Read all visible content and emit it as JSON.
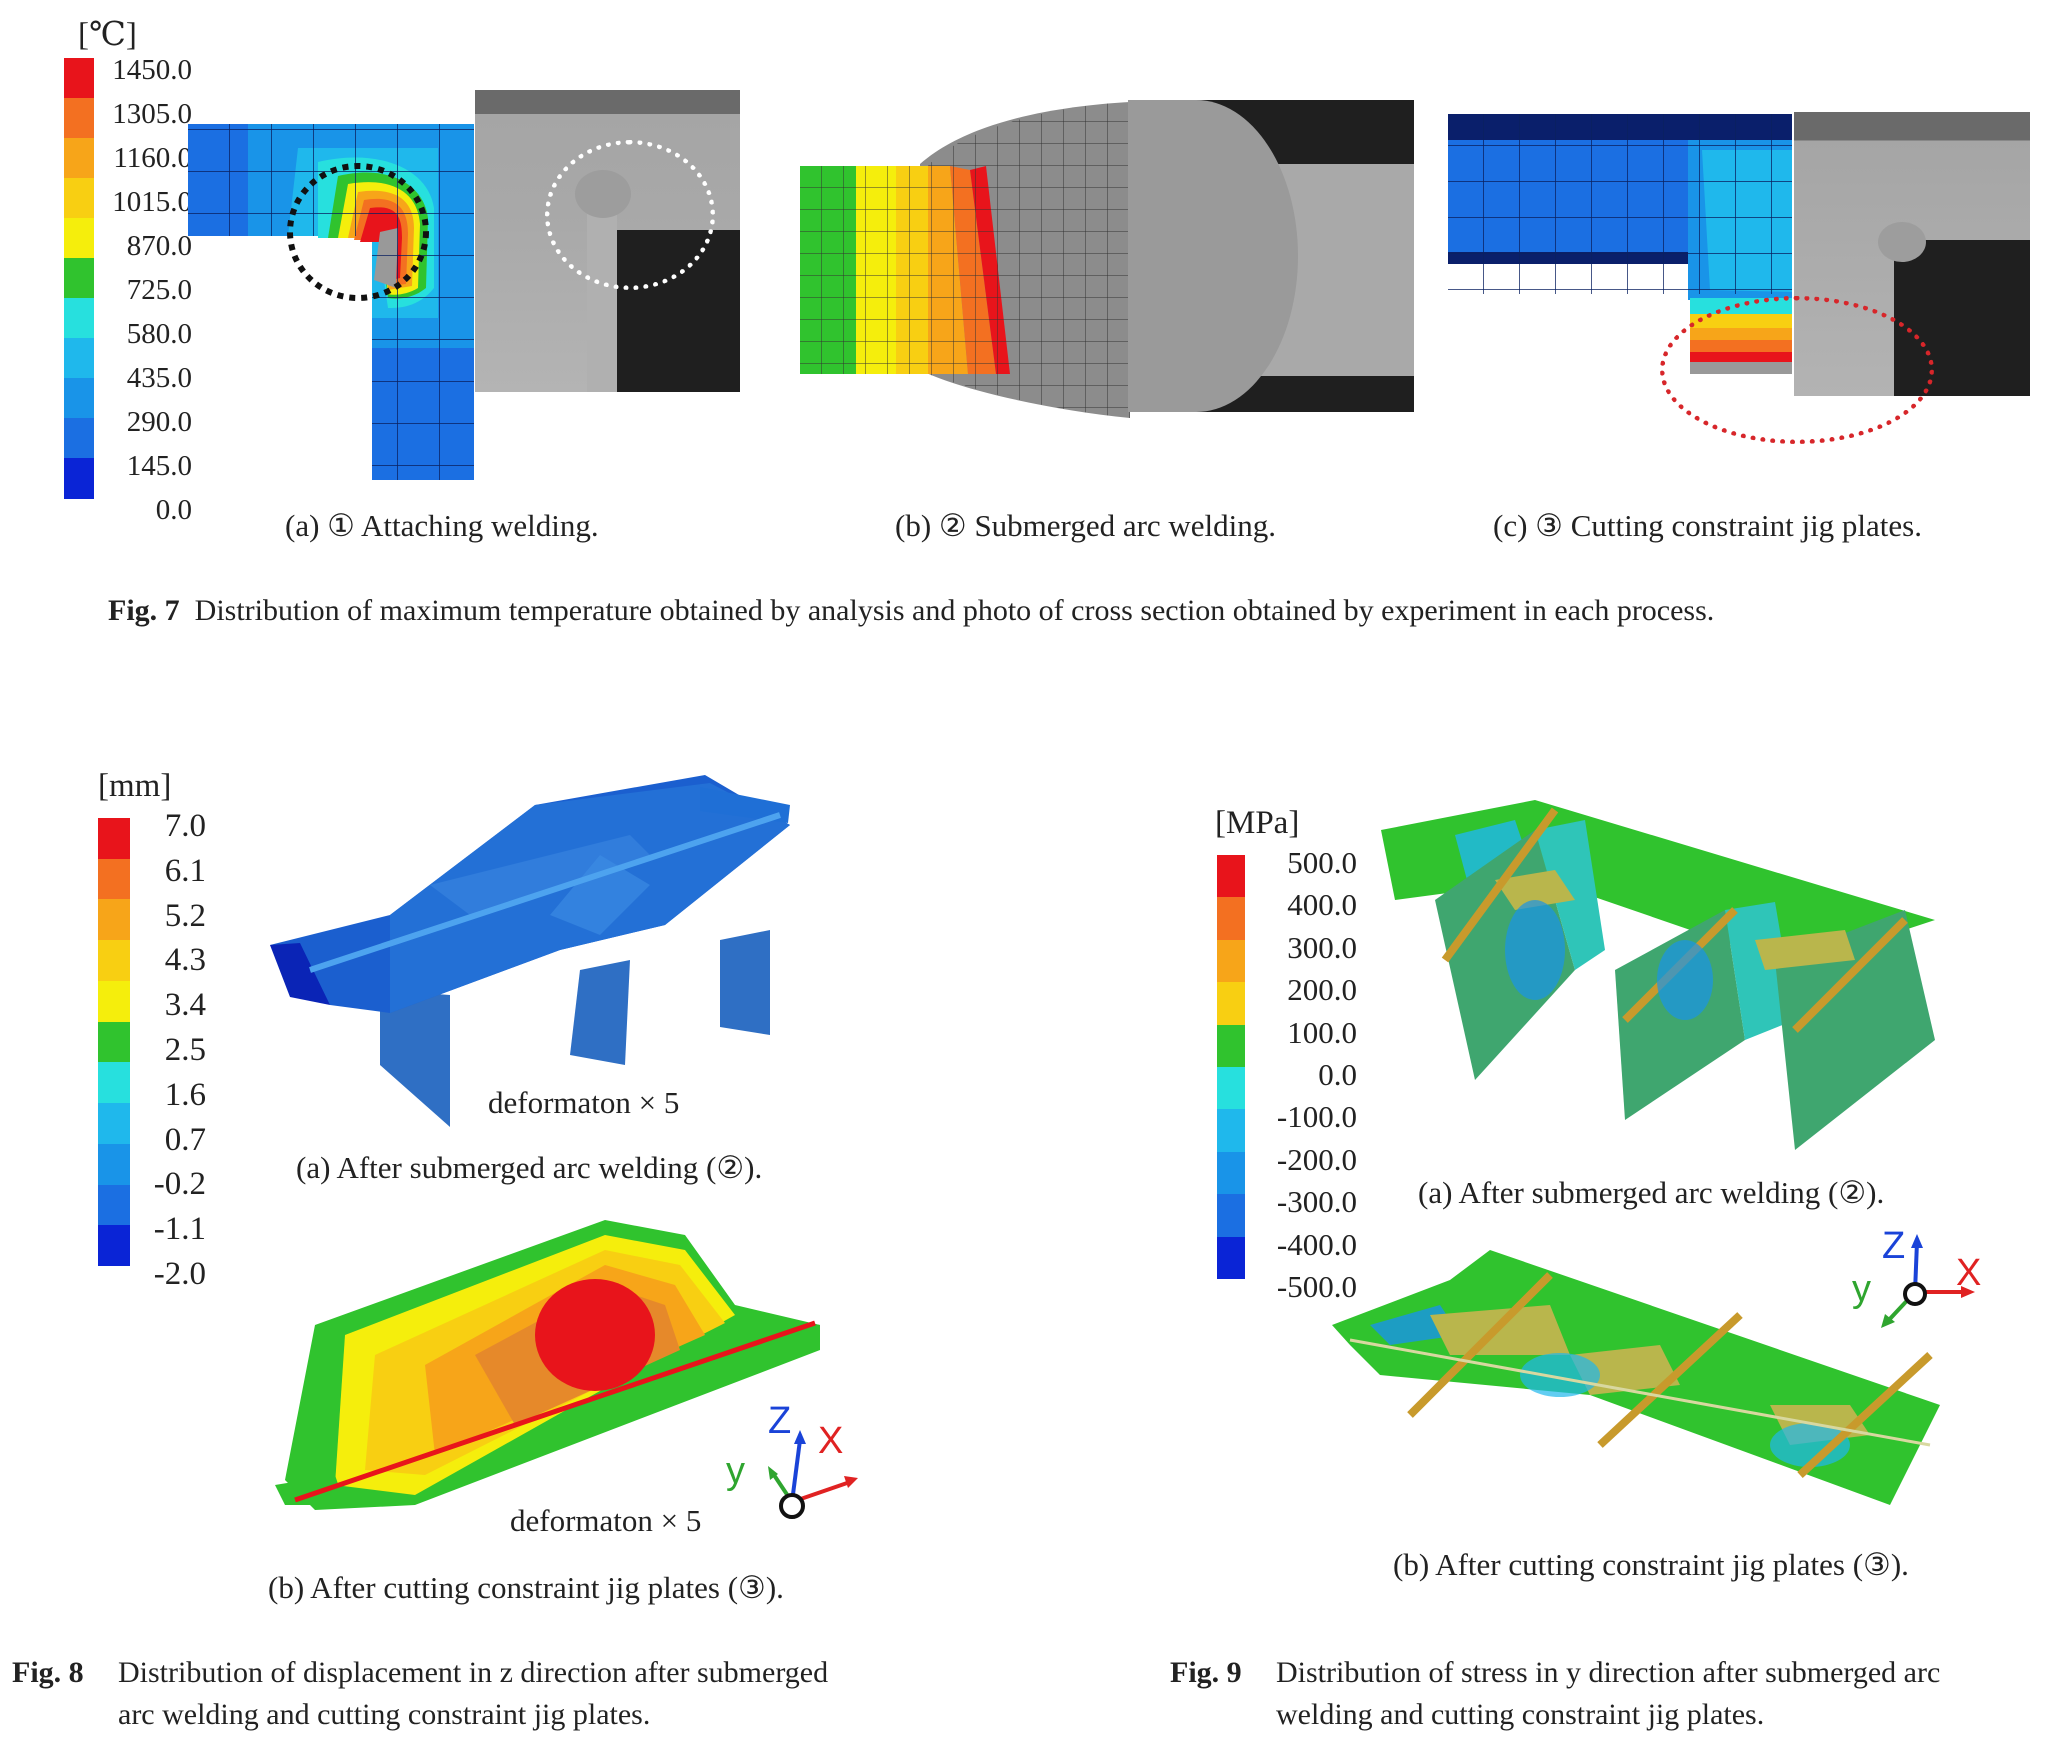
{
  "fig7": {
    "unit": "[℃]",
    "ticks": [
      "1450.0",
      "1305.0",
      "1160.0",
      "1015.0",
      "870.0",
      "725.0",
      "580.0",
      "435.0",
      "290.0",
      "145.0",
      "0.0"
    ],
    "colors": [
      "#e8141b",
      "#f37021",
      "#f7a519",
      "#f8cf12",
      "#f5ee0c",
      "#30c32e",
      "#27e0de",
      "#1fb8ec",
      "#1994e8",
      "#1b6fe2",
      "#0a24d6"
    ],
    "sub_a": "(a) ① Attaching welding.",
    "sub_b": "(b) ② Submerged arc welding.",
    "sub_c": "(c) ③ Cutting constraint jig plates.",
    "caption_label": "Fig. 7",
    "caption_text": "Distribution of maximum temperature obtained by analysis and photo of cross section obtained by experiment in each process."
  },
  "fig8": {
    "unit": "[mm]",
    "ticks": [
      "7.0",
      "6.1",
      "5.2",
      "4.3",
      "3.4",
      "2.5",
      "1.6",
      "0.7",
      "-0.2",
      "-1.1",
      "-2.0"
    ],
    "colors": [
      "#e8141b",
      "#f37021",
      "#f7a519",
      "#f8cf12",
      "#f5ee0c",
      "#30c32e",
      "#27e0de",
      "#1fb8ec",
      "#1994e8",
      "#1b6fe2",
      "#0a24d6"
    ],
    "deform_a": "deformaton × 5",
    "deform_b": "deformaton × 5",
    "sub_a": "(a) After submerged arc welding (②).",
    "sub_b": "(b) After cutting constraint jig plates (③).",
    "axes": {
      "x": "X",
      "y": "y",
      "z": "Z"
    },
    "caption_label": "Fig. 8",
    "caption_line1": "Distribution of displacement in z direction after submerged",
    "caption_line2": "arc welding and cutting constraint jig plates."
  },
  "fig9": {
    "unit": "[MPa]",
    "ticks": [
      "500.0",
      "400.0",
      "300.0",
      "200.0",
      "100.0",
      "0.0",
      "-100.0",
      "-200.0",
      "-300.0",
      "-400.0",
      "-500.0"
    ],
    "colors": [
      "#e8141b",
      "#f37021",
      "#f7a519",
      "#f8cf12",
      "#30c32e",
      "#27e0de",
      "#1fb8ec",
      "#1994e8",
      "#1b6fe2",
      "#0a24d6"
    ],
    "sub_a": "(a) After submerged arc welding (②).",
    "sub_b": "(b) After cutting constraint jig plates (③).",
    "axes": {
      "x": "X",
      "y": "y",
      "z": "Z"
    },
    "caption_label": "Fig. 9",
    "caption_line1": "Distribution of stress in y direction after submerged arc",
    "caption_line2": "welding and cutting constraint jig plates."
  }
}
